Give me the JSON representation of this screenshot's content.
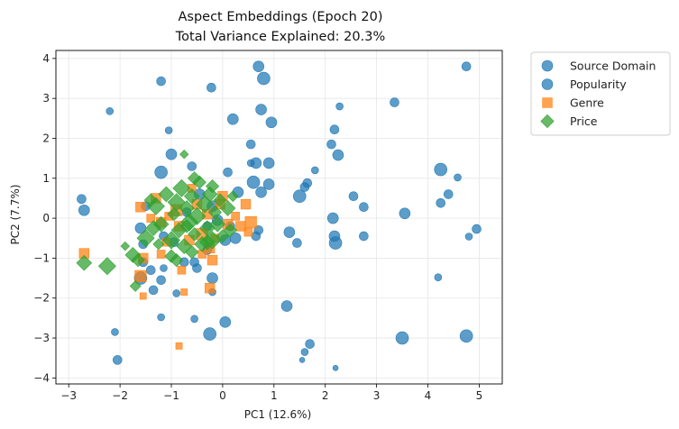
{
  "chart_data": {
    "type": "scatter",
    "title": "Aspect Embeddings (Epoch 20)",
    "subtitle": "Total Variance Explained: 20.3%",
    "xlabel": "PC1 (12.6%)",
    "ylabel": "PC2 (7.7%)",
    "xlim": [
      -3.25,
      5.45
    ],
    "ylim": [
      -4.15,
      4.2
    ],
    "xticks": [
      -3,
      -2,
      -1,
      0,
      1,
      2,
      3,
      4,
      5
    ],
    "yticks": [
      -4,
      -3,
      -2,
      -1,
      0,
      1,
      2,
      3,
      4
    ],
    "grid": true,
    "legend": "outside-top-right",
    "series": [
      {
        "name": "Source Domain",
        "marker": "circle",
        "color": "#1f77b4",
        "points": [
          [
            -2.2,
            2.68,
            4
          ],
          [
            -1.2,
            3.43,
            5
          ],
          [
            -0.22,
            3.27,
            5
          ],
          [
            0.7,
            3.8,
            6
          ],
          [
            0.8,
            3.5,
            7
          ],
          [
            0.2,
            2.48,
            6
          ],
          [
            0.75,
            2.72,
            6
          ],
          [
            0.95,
            2.4,
            6
          ],
          [
            2.28,
            2.8,
            4
          ],
          [
            2.18,
            2.22,
            5
          ],
          [
            3.35,
            2.9,
            5
          ],
          [
            4.75,
            3.8,
            5
          ],
          [
            -1.05,
            2.2,
            4
          ],
          [
            0.55,
            1.85,
            5
          ],
          [
            2.12,
            1.85,
            5
          ],
          [
            -1.2,
            1.15,
            7
          ],
          [
            -0.6,
            1.3,
            5
          ],
          [
            0.1,
            1.15,
            5
          ],
          [
            0.55,
            1.38,
            4
          ],
          [
            0.65,
            1.38,
            6
          ],
          [
            0.9,
            1.38,
            6
          ],
          [
            2.25,
            1.58,
            6
          ],
          [
            1.8,
            1.2,
            4
          ],
          [
            4.25,
            1.22,
            7
          ],
          [
            4.58,
            1.02,
            4
          ],
          [
            1.65,
            0.88,
            5
          ],
          [
            1.6,
            0.78,
            5
          ],
          [
            1.5,
            0.55,
            7
          ],
          [
            0.6,
            0.9,
            7
          ],
          [
            0.9,
            0.85,
            6
          ],
          [
            0.75,
            0.65,
            6
          ],
          [
            -2.75,
            0.48,
            5
          ],
          [
            -2.7,
            0.2,
            6
          ],
          [
            2.55,
            0.55,
            5
          ],
          [
            2.75,
            0.28,
            5
          ],
          [
            3.55,
            0.12,
            6
          ],
          [
            4.25,
            0.38,
            5
          ],
          [
            4.4,
            0.6,
            5
          ],
          [
            2.15,
            0.0,
            6
          ],
          [
            -1.5,
            0.3,
            5
          ],
          [
            -1.6,
            -0.25,
            6
          ],
          [
            -1.15,
            -0.45,
            5
          ],
          [
            -0.95,
            -0.6,
            5
          ],
          [
            -1.55,
            -0.65,
            5
          ],
          [
            -0.3,
            -0.2,
            5
          ],
          [
            -0.2,
            0.3,
            6
          ],
          [
            0.05,
            -0.55,
            6
          ],
          [
            0.25,
            -0.5,
            6
          ],
          [
            0.65,
            -0.45,
            5
          ],
          [
            0.7,
            -0.3,
            5
          ],
          [
            1.3,
            -0.35,
            6
          ],
          [
            1.45,
            -0.62,
            5
          ],
          [
            2.18,
            -0.45,
            6
          ],
          [
            2.2,
            -0.62,
            7
          ],
          [
            2.75,
            -0.45,
            5
          ],
          [
            4.95,
            -0.27,
            5
          ],
          [
            4.8,
            -0.46,
            4
          ],
          [
            -1.55,
            -1.1,
            5
          ],
          [
            -1.6,
            -1.5,
            7
          ],
          [
            -1.4,
            -1.3,
            5
          ],
          [
            -0.75,
            -1.1,
            5
          ],
          [
            -0.55,
            -1.1,
            5
          ],
          [
            -0.5,
            -1.25,
            5
          ],
          [
            -0.2,
            -1.5,
            6
          ],
          [
            -1.2,
            -1.55,
            5
          ],
          [
            -1.15,
            -1.25,
            4
          ],
          [
            -1.35,
            -1.8,
            5
          ],
          [
            -0.9,
            -1.88,
            4
          ],
          [
            -0.2,
            -1.85,
            4
          ],
          [
            1.25,
            -2.2,
            6
          ],
          [
            4.2,
            -1.48,
            4
          ],
          [
            -2.1,
            -2.85,
            4
          ],
          [
            -1.2,
            -2.48,
            4
          ],
          [
            -0.55,
            -2.52,
            4
          ],
          [
            -0.25,
            -2.9,
            7
          ],
          [
            0.05,
            -2.6,
            6
          ],
          [
            3.5,
            -3.0,
            7
          ],
          [
            4.75,
            -2.95,
            7
          ],
          [
            1.7,
            -3.15,
            5
          ],
          [
            1.6,
            -3.35,
            4
          ],
          [
            1.55,
            -3.55,
            3
          ],
          [
            2.2,
            -3.75,
            3
          ],
          [
            -2.05,
            -3.55,
            5
          ],
          [
            -1.0,
            1.6,
            6
          ],
          [
            -0.45,
            0.6,
            6
          ],
          [
            0.3,
            0.65,
            6
          ],
          [
            -0.7,
            0.15,
            5
          ],
          [
            -0.1,
            -0.05,
            6
          ],
          [
            0.15,
            -0.2,
            5
          ],
          [
            -0.3,
            -0.8,
            5
          ]
        ]
      },
      {
        "name": "Popularity",
        "marker": "circle",
        "color": "#1f77b4",
        "points": []
      },
      {
        "name": "Genre",
        "marker": "square",
        "color": "#ff7f0e",
        "points": [
          [
            -2.7,
            -0.88,
            6
          ],
          [
            -1.55,
            -1.0,
            6
          ],
          [
            -1.6,
            -1.45,
            7
          ],
          [
            -1.55,
            -1.95,
            4
          ],
          [
            -1.6,
            0.28,
            6
          ],
          [
            -1.3,
            0.5,
            6
          ],
          [
            -1.4,
            0.0,
            5
          ],
          [
            -1.2,
            -0.1,
            6
          ],
          [
            -1.1,
            -0.6,
            5
          ],
          [
            -0.85,
            -0.2,
            6
          ],
          [
            -0.9,
            0.2,
            7
          ],
          [
            -0.5,
            0.35,
            6
          ],
          [
            -0.4,
            -0.4,
            7
          ],
          [
            -0.3,
            0.1,
            6
          ],
          [
            -0.15,
            -0.5,
            5
          ],
          [
            -0.05,
            0.35,
            6
          ],
          [
            0.1,
            -0.15,
            6
          ],
          [
            0.25,
            0.05,
            5
          ],
          [
            0.45,
            0.35,
            6
          ],
          [
            0.5,
            -0.35,
            5
          ],
          [
            0.55,
            -0.1,
            7
          ],
          [
            -0.25,
            -0.75,
            6
          ],
          [
            -0.8,
            -1.3,
            5
          ],
          [
            -0.75,
            -1.85,
            4
          ],
          [
            -0.25,
            -1.75,
            6
          ],
          [
            -0.2,
            -1.05,
            6
          ],
          [
            -0.85,
            -3.2,
            4
          ],
          [
            -0.6,
            0.75,
            5
          ],
          [
            0.0,
            0.55,
            6
          ],
          [
            -1.05,
            0.05,
            5
          ],
          [
            -0.65,
            -0.55,
            6
          ],
          [
            -0.4,
            -0.9,
            5
          ],
          [
            0.35,
            -0.2,
            6
          ],
          [
            -1.2,
            -0.9,
            5
          ]
        ]
      },
      {
        "name": "Price",
        "marker": "diamond",
        "color": "#2ca02c",
        "points": [
          [
            -2.7,
            -1.12,
            7
          ],
          [
            -2.25,
            -1.2,
            8
          ],
          [
            -1.9,
            -0.7,
            4
          ],
          [
            -1.75,
            -0.92,
            7
          ],
          [
            -1.65,
            -1.05,
            6
          ],
          [
            -1.7,
            -1.7,
            5
          ],
          [
            -1.5,
            -0.5,
            8
          ],
          [
            -1.35,
            -0.25,
            7
          ],
          [
            -1.4,
            0.45,
            6
          ],
          [
            -1.3,
            0.3,
            8
          ],
          [
            -1.2,
            -0.15,
            7
          ],
          [
            -1.1,
            0.6,
            7
          ],
          [
            -1.0,
            -0.55,
            8
          ],
          [
            -0.95,
            0.1,
            6
          ],
          [
            -0.9,
            0.4,
            8
          ],
          [
            -0.85,
            -0.3,
            7
          ],
          [
            -0.8,
            0.75,
            8
          ],
          [
            -0.75,
            -0.7,
            7
          ],
          [
            -0.7,
            0.25,
            7
          ],
          [
            -0.65,
            -0.1,
            8
          ],
          [
            -0.6,
            0.55,
            7
          ],
          [
            -0.55,
            -0.4,
            6
          ],
          [
            -0.5,
            0.05,
            8
          ],
          [
            -0.45,
            0.9,
            6
          ],
          [
            -0.4,
            -0.65,
            7
          ],
          [
            -0.35,
            0.35,
            8
          ],
          [
            -0.3,
            -0.25,
            7
          ],
          [
            -0.25,
            0.6,
            7
          ],
          [
            -0.2,
            -0.55,
            8
          ],
          [
            -0.15,
            0.15,
            6
          ],
          [
            -0.1,
            -0.15,
            7
          ],
          [
            -0.05,
            0.45,
            6
          ],
          [
            0.0,
            -0.45,
            6
          ],
          [
            0.1,
            0.25,
            7
          ],
          [
            0.15,
            -0.3,
            6
          ],
          [
            0.2,
            0.55,
            5
          ],
          [
            -0.75,
            1.6,
            4
          ],
          [
            -0.55,
            1.0,
            6
          ],
          [
            -1.0,
            -0.95,
            6
          ],
          [
            -0.9,
            -1.05,
            6
          ],
          [
            -1.25,
            -0.65,
            5
          ],
          [
            -0.6,
            -0.85,
            6
          ],
          [
            -0.3,
            -0.6,
            7
          ],
          [
            -0.2,
            0.8,
            6
          ],
          [
            -0.7,
            -0.2,
            6
          ]
        ]
      }
    ]
  }
}
